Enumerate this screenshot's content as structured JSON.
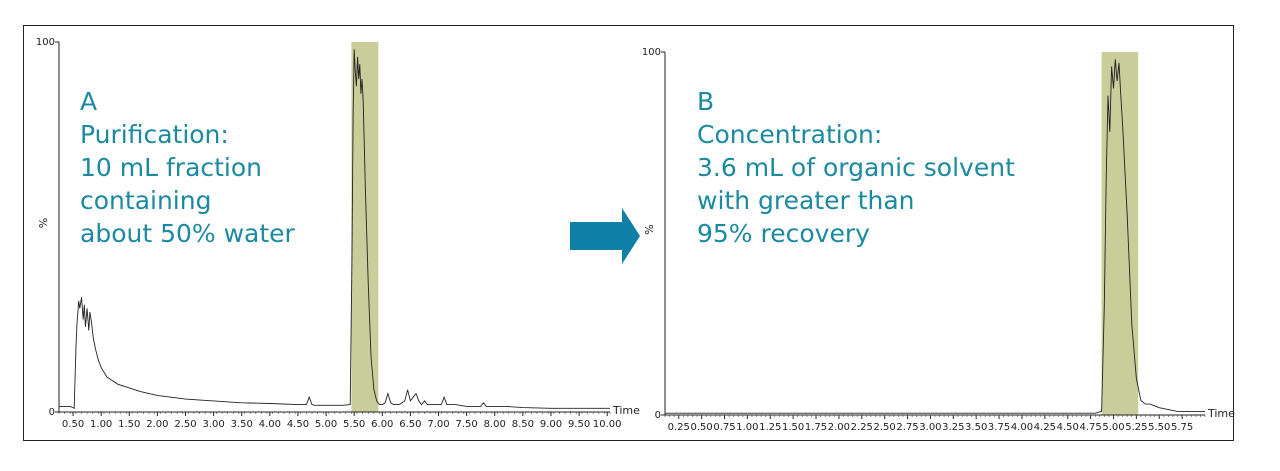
{
  "colors": {
    "accent": "#1b8aa0",
    "highlight": "#c9cd9a",
    "arrow": "#0e80a8",
    "trace": "#222222"
  },
  "arrow": {
    "icon": "right-arrow-icon"
  },
  "chart_data": [
    {
      "type": "line",
      "panel": "A",
      "annotation": [
        "A",
        "Purification:",
        "10 mL fraction",
        "containing",
        "about 50% water"
      ],
      "ylabel": "%",
      "xlabel_suffix": "Time",
      "ylim": [
        0,
        100
      ],
      "xlim": [
        0.25,
        10.05
      ],
      "y_ticks": [
        "100",
        "0"
      ],
      "x_ticks": [
        "0.50",
        "1.00",
        "1.50",
        "2.00",
        "2.50",
        "3.00",
        "3.50",
        "4.00",
        "4.50",
        "5.00",
        "5.50",
        "6.00",
        "6.50",
        "7.00",
        "7.50",
        "8.00",
        "8.50",
        "9.00",
        "9.50",
        "10.00"
      ],
      "highlight_range": [
        5.45,
        5.93
      ],
      "series": [
        {
          "x": [
            0.25,
            0.45,
            0.5,
            0.52,
            0.55,
            0.57,
            0.6,
            0.62,
            0.65,
            0.68,
            0.7,
            0.72,
            0.75,
            0.78,
            0.8,
            0.83,
            0.86,
            0.9,
            0.95,
            1.0,
            1.1,
            1.2,
            1.3,
            1.5,
            1.7,
            2.0,
            2.5,
            3.0,
            3.5,
            4.0,
            4.5,
            4.65,
            4.7,
            4.75,
            4.8,
            5.0,
            5.3,
            5.43,
            5.46,
            5.48,
            5.5,
            5.52,
            5.54,
            5.56,
            5.58,
            5.6,
            5.62,
            5.64,
            5.66,
            5.7,
            5.75,
            5.8,
            5.85,
            5.9,
            5.95,
            6.0,
            6.05,
            6.1,
            6.15,
            6.2,
            6.3,
            6.4,
            6.45,
            6.5,
            6.55,
            6.6,
            6.65,
            6.7,
            6.75,
            6.8,
            6.9,
            7.0,
            7.05,
            7.1,
            7.15,
            7.2,
            7.3,
            7.5,
            7.75,
            7.8,
            7.85,
            7.9,
            8.0,
            8.2,
            8.5,
            9.0,
            9.5,
            10.05
          ],
          "y": [
            1.5,
            1.5,
            1.2,
            1.0,
            17,
            24,
            30,
            28,
            31,
            25,
            29,
            23,
            28,
            22,
            27,
            24,
            20,
            17,
            14,
            12,
            9.5,
            8.5,
            7.5,
            6.5,
            5.5,
            4.5,
            3.5,
            3.0,
            2.5,
            2.3,
            2.0,
            2.0,
            4.0,
            2.0,
            1.8,
            1.8,
            1.8,
            2.0,
            40,
            80,
            98,
            92,
            88,
            96,
            90,
            94,
            86,
            90,
            84,
            60,
            35,
            15,
            6,
            3,
            2,
            2,
            2.5,
            5,
            2.5,
            2,
            2,
            3,
            6,
            3,
            4,
            5,
            3,
            2,
            3,
            2,
            2,
            2,
            2,
            4,
            2,
            2,
            2,
            1.5,
            1.5,
            2.5,
            1.5,
            1.5,
            1.5,
            1.5,
            1.2,
            1,
            1,
            1
          ]
        }
      ]
    },
    {
      "type": "line",
      "panel": "B",
      "annotation": [
        "B",
        "Concentration:",
        "3.6 mL of organic solvent",
        "with greater than",
        "95% recovery"
      ],
      "ylabel": "%",
      "xlabel_suffix": "Time",
      "ylim": [
        0,
        100
      ],
      "xlim": [
        0.1,
        6.0
      ],
      "y_ticks": [
        "100",
        "0"
      ],
      "x_ticks": [
        "0.25",
        "0.50",
        "0.75",
        "1.00",
        "1.25",
        "1.50",
        "1.75",
        "2.00",
        "2.25",
        "2.50",
        "2.75",
        "3.00",
        "3.25",
        "3.50",
        "3.75",
        "4.00",
        "4.25",
        "4.50",
        "4.75",
        "5.00",
        "5.25",
        "5.50",
        "5.75"
      ],
      "highlight_range": [
        4.87,
        5.27
      ],
      "series": [
        {
          "x": [
            0.1,
            1.0,
            2.0,
            3.0,
            4.0,
            4.8,
            4.87,
            4.9,
            4.92,
            4.94,
            4.96,
            4.98,
            5.0,
            5.02,
            5.04,
            5.06,
            5.08,
            5.1,
            5.15,
            5.2,
            5.25,
            5.3,
            5.35,
            5.4,
            5.5,
            5.6,
            5.7,
            5.8,
            5.9,
            6.0
          ],
          "y": [
            0.5,
            0.5,
            0.5,
            0.5,
            0.5,
            0.5,
            1,
            30,
            65,
            88,
            78,
            96,
            90,
            98,
            92,
            97,
            88,
            80,
            55,
            25,
            10,
            4,
            3,
            3,
            2,
            1.5,
            1,
            1,
            1,
            1
          ]
        }
      ]
    }
  ]
}
